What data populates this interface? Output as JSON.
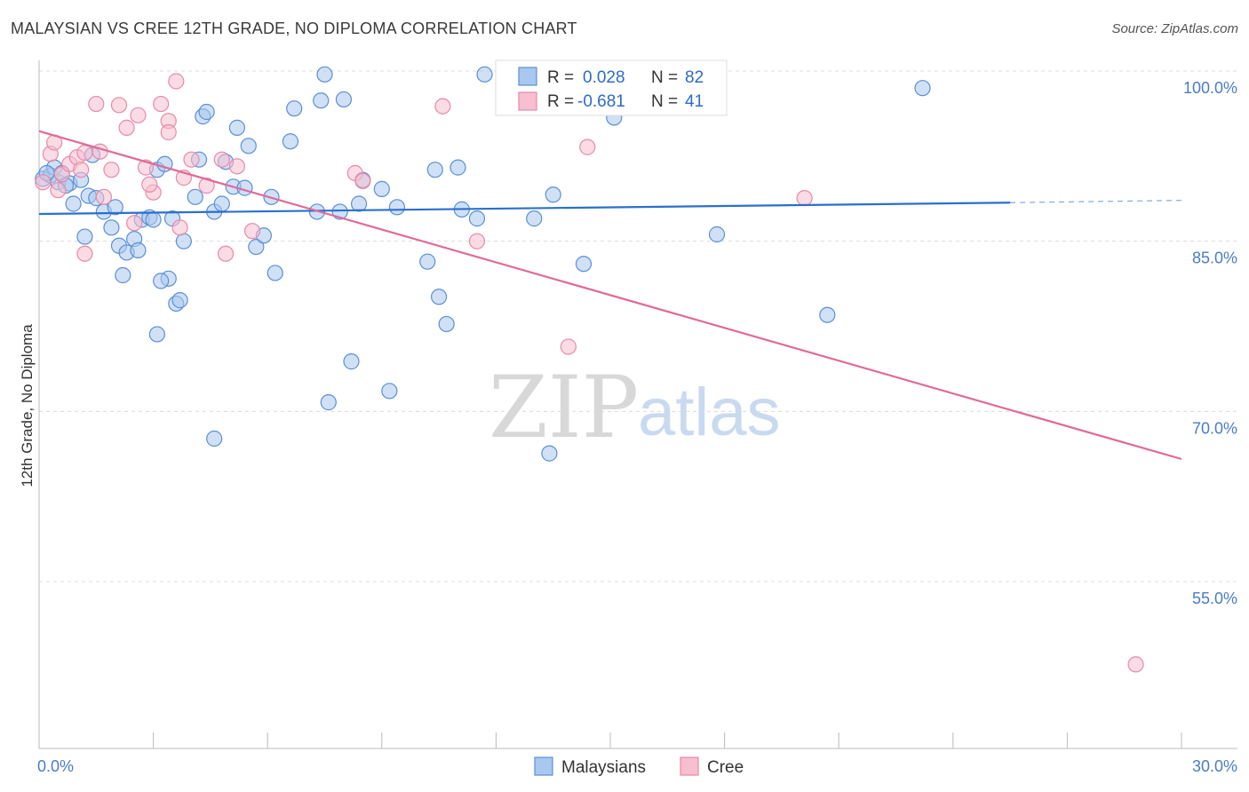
{
  "title": "MALAYSIAN VS CREE 12TH GRADE, NO DIPLOMA CORRELATION CHART",
  "source": "Source: ZipAtlas.com",
  "watermark": {
    "zip": "ZIP",
    "atlas": "atlas"
  },
  "colors": {
    "malaysians_fill": "#a9c8ef",
    "malaysians_stroke": "#5b8fd6",
    "malaysians_line": "#2a6fcf",
    "cree_fill": "#f7bfd0",
    "cree_stroke": "#e889a8",
    "cree_line": "#e06a98",
    "grid": "#dcdcdc",
    "tick_text": "#4a7cc7"
  },
  "legend": {
    "r_label": "R =",
    "n_label": "N =",
    "rows": [
      {
        "series": "Malaysians",
        "r": "0.028",
        "n": "82"
      },
      {
        "series": "Cree",
        "r": "-0.681",
        "n": "41"
      }
    ]
  },
  "chart_data": {
    "type": "scatter",
    "title": "MALAYSIAN VS CREE 12TH GRADE, NO DIPLOMA CORRELATION CHART",
    "xlabel": "",
    "ylabel": "12th Grade, No Diploma",
    "xlim": [
      0,
      30
    ],
    "ylim": [
      40,
      102
    ],
    "x_ticks": [
      "0.0%",
      "30.0%"
    ],
    "y_ticks": [
      "100.0%",
      "85.0%",
      "70.0%",
      "55.0%"
    ],
    "y_tick_values": [
      100,
      85,
      70,
      55
    ],
    "grid": true,
    "legend_position": "bottom-center",
    "series": [
      {
        "name": "Malaysians",
        "trend": {
          "x": [
            0,
            25.5
          ],
          "y": [
            87.4,
            88.4
          ],
          "dashed_to_x": 30,
          "dashed_to_y": 88.6
        },
        "points": [
          [
            0.1,
            90.5
          ],
          [
            0.3,
            90.8
          ],
          [
            0.5,
            90.2
          ],
          [
            0.4,
            91.5
          ],
          [
            0.6,
            91.0
          ],
          [
            0.8,
            90.1
          ],
          [
            0.9,
            88.3
          ],
          [
            1.1,
            90.4
          ],
          [
            1.3,
            89.0
          ],
          [
            1.5,
            88.8
          ],
          [
            1.7,
            87.6
          ],
          [
            1.9,
            86.2
          ],
          [
            2.1,
            84.6
          ],
          [
            2.3,
            84.0
          ],
          [
            2.5,
            85.2
          ],
          [
            2.6,
            84.2
          ],
          [
            2.7,
            86.9
          ],
          [
            2.9,
            87.1
          ],
          [
            3.0,
            86.9
          ],
          [
            3.1,
            91.3
          ],
          [
            3.3,
            91.8
          ],
          [
            3.5,
            87.0
          ],
          [
            3.4,
            81.7
          ],
          [
            3.2,
            81.5
          ],
          [
            3.6,
            79.5
          ],
          [
            3.7,
            79.8
          ],
          [
            3.1,
            76.8
          ],
          [
            2.2,
            82.0
          ],
          [
            1.2,
            85.4
          ],
          [
            4.3,
            96.0
          ],
          [
            4.4,
            96.4
          ],
          [
            4.2,
            92.2
          ],
          [
            4.1,
            88.9
          ],
          [
            4.6,
            87.6
          ],
          [
            4.8,
            88.3
          ],
          [
            5.1,
            89.8
          ],
          [
            5.2,
            95.0
          ],
          [
            5.4,
            89.7
          ],
          [
            5.5,
            93.4
          ],
          [
            5.7,
            84.5
          ],
          [
            5.9,
            85.5
          ],
          [
            6.1,
            88.9
          ],
          [
            6.2,
            82.2
          ],
          [
            6.6,
            93.8
          ],
          [
            6.7,
            96.7
          ],
          [
            7.3,
            87.6
          ],
          [
            7.4,
            97.4
          ],
          [
            7.5,
            99.7
          ],
          [
            7.9,
            87.6
          ],
          [
            8.0,
            97.5
          ],
          [
            8.4,
            88.3
          ],
          [
            8.5,
            90.4
          ],
          [
            9.0,
            89.6
          ],
          [
            9.4,
            88.0
          ],
          [
            9.2,
            71.8
          ],
          [
            8.2,
            74.4
          ],
          [
            7.6,
            70.8
          ],
          [
            4.6,
            67.6
          ],
          [
            10.2,
            83.2
          ],
          [
            10.4,
            91.3
          ],
          [
            10.5,
            80.1
          ],
          [
            10.7,
            77.7
          ],
          [
            11.0,
            91.5
          ],
          [
            11.1,
            87.8
          ],
          [
            11.5,
            87.0
          ],
          [
            11.7,
            99.7
          ],
          [
            13.0,
            87.0
          ],
          [
            13.5,
            89.1
          ],
          [
            13.4,
            66.3
          ],
          [
            14.0,
            98.1
          ],
          [
            14.3,
            83.0
          ],
          [
            15.1,
            95.9
          ],
          [
            15.6,
            99.8
          ],
          [
            17.8,
            85.6
          ],
          [
            20.7,
            78.5
          ],
          [
            23.2,
            98.5
          ],
          [
            0.2,
            91.0
          ],
          [
            0.7,
            89.9
          ],
          [
            1.4,
            92.6
          ],
          [
            2.0,
            88.0
          ],
          [
            4.9,
            92.0
          ],
          [
            3.8,
            85.0
          ]
        ]
      },
      {
        "name": "Cree",
        "trend": {
          "x": [
            0,
            30
          ],
          "y": [
            94.7,
            65.8
          ]
        },
        "points": [
          [
            0.1,
            90.2
          ],
          [
            0.3,
            92.7
          ],
          [
            0.4,
            93.7
          ],
          [
            0.6,
            90.9
          ],
          [
            0.8,
            91.8
          ],
          [
            1.0,
            92.4
          ],
          [
            1.1,
            91.3
          ],
          [
            1.2,
            92.8
          ],
          [
            1.5,
            97.1
          ],
          [
            1.7,
            88.9
          ],
          [
            1.9,
            91.3
          ],
          [
            2.1,
            97.0
          ],
          [
            2.3,
            95.0
          ],
          [
            2.6,
            96.1
          ],
          [
            2.5,
            86.6
          ],
          [
            2.8,
            91.5
          ],
          [
            3.0,
            89.3
          ],
          [
            3.2,
            97.1
          ],
          [
            3.4,
            95.6
          ],
          [
            3.4,
            94.6
          ],
          [
            3.6,
            99.1
          ],
          [
            3.8,
            90.6
          ],
          [
            4.0,
            92.2
          ],
          [
            4.4,
            89.9
          ],
          [
            4.8,
            92.2
          ],
          [
            5.2,
            91.6
          ],
          [
            5.6,
            85.9
          ],
          [
            3.7,
            86.2
          ],
          [
            4.9,
            83.9
          ],
          [
            1.2,
            83.9
          ],
          [
            8.3,
            91.0
          ],
          [
            8.5,
            90.3
          ],
          [
            10.6,
            96.9
          ],
          [
            11.5,
            85.0
          ],
          [
            13.9,
            75.7
          ],
          [
            14.4,
            93.3
          ],
          [
            20.1,
            88.8
          ],
          [
            28.8,
            47.7
          ],
          [
            0.5,
            89.5
          ],
          [
            1.6,
            92.9
          ],
          [
            2.9,
            90.0
          ]
        ]
      }
    ]
  }
}
